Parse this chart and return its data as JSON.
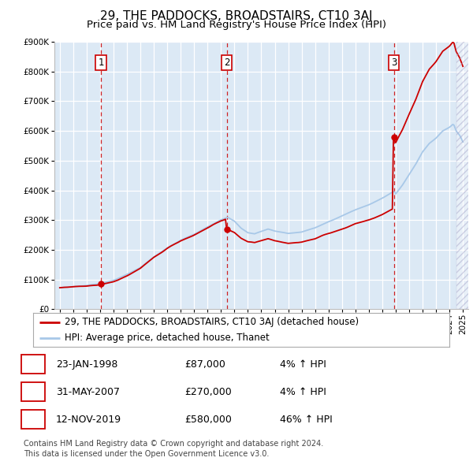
{
  "title": "29, THE PADDOCKS, BROADSTAIRS, CT10 3AJ",
  "subtitle": "Price paid vs. HM Land Registry's House Price Index (HPI)",
  "legend_line1": "29, THE PADDOCKS, BROADSTAIRS, CT10 3AJ (detached house)",
  "legend_line2": "HPI: Average price, detached house, Thanet",
  "footer1": "Contains HM Land Registry data © Crown copyright and database right 2024.",
  "footer2": "This data is licensed under the Open Government Licence v3.0.",
  "transactions": [
    {
      "num": 1,
      "date": "23-JAN-1998",
      "price": "£87,000",
      "pct": "4% ↑ HPI"
    },
    {
      "num": 2,
      "date": "31-MAY-2007",
      "price": "£270,000",
      "pct": "4% ↑ HPI"
    },
    {
      "num": 3,
      "date": "12-NOV-2019",
      "price": "£580,000",
      "pct": "46% ↑ HPI"
    }
  ],
  "sale_dates_decimal": [
    1998.06,
    2007.42,
    2019.87
  ],
  "sale_prices": [
    87000,
    270000,
    580000
  ],
  "hpi_color": "#a8c8e8",
  "price_color": "#cc0000",
  "dashed_line_color": "#cc0000",
  "plot_bg_color": "#dce9f5",
  "ylim": [
    0,
    900000
  ],
  "yticks": [
    0,
    100000,
    200000,
    300000,
    400000,
    500000,
    600000,
    700000,
    800000,
    900000
  ],
  "grid_color": "#ffffff",
  "title_fontsize": 11,
  "subtitle_fontsize": 9.5,
  "tick_fontsize": 7.5,
  "legend_fontsize": 8.5,
  "footer_fontsize": 7
}
